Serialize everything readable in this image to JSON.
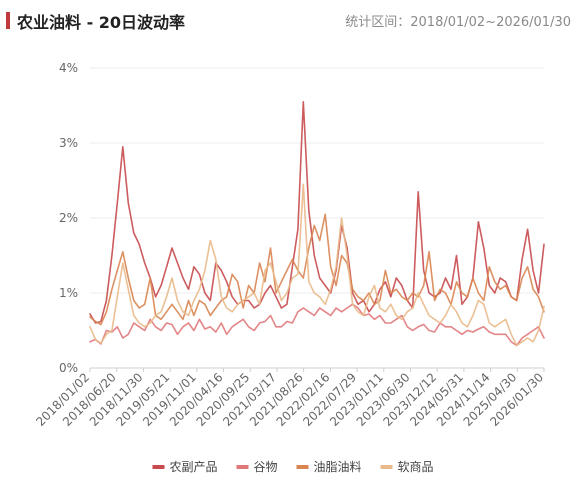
{
  "header": {
    "title": "农业油料 - 20日波动率",
    "range": "统计区间：2018/01/02~2026/01/30"
  },
  "chart_data": {
    "type": "line",
    "title": "农业油料 - 20日波动率",
    "xlabel": "",
    "ylabel": "",
    "ylim": [
      0,
      4
    ],
    "y_unit": "%",
    "y_ticks": [
      "0%",
      "1%",
      "2%",
      "3%",
      "4%"
    ],
    "x_ticks": [
      "2018/01/02",
      "2018/06/20",
      "2018/11/30",
      "2019/05/21",
      "2019/11/01",
      "2020/04/16",
      "2020/09/25",
      "2021/03/17",
      "2021/08/26",
      "2022/02/16",
      "2022/07/29",
      "2023/01/11",
      "2023/06/30",
      "2023/12/12",
      "2024/05/31",
      "2024/11/14",
      "2025/04/30",
      "2026/01/30"
    ],
    "legend_position": "bottom",
    "grid": "horizontal",
    "series": [
      {
        "name": "农副产品",
        "color": "#c84a4c",
        "values": [
          0.72,
          0.6,
          0.62,
          0.9,
          1.5,
          2.2,
          2.95,
          2.2,
          1.8,
          1.65,
          1.4,
          1.2,
          0.95,
          1.1,
          1.35,
          1.6,
          1.4,
          1.2,
          1.05,
          1.35,
          1.25,
          1.0,
          0.9,
          1.4,
          1.3,
          1.15,
          0.95,
          0.85,
          0.9,
          0.9,
          0.8,
          0.85,
          1.0,
          1.1,
          0.95,
          0.8,
          0.85,
          1.35,
          1.85,
          3.55,
          2.1,
          1.5,
          1.2,
          1.1,
          1.0,
          1.3,
          1.9,
          1.6,
          1.0,
          0.85,
          0.9,
          0.75,
          0.85,
          1.05,
          1.15,
          0.95,
          1.2,
          1.1,
          0.9,
          0.8,
          2.35,
          1.3,
          1.0,
          0.95,
          1.0,
          1.2,
          1.05,
          1.5,
          0.85,
          0.95,
          1.2,
          1.95,
          1.6,
          1.1,
          1.0,
          1.2,
          1.15,
          0.95,
          0.9,
          1.45,
          1.85,
          1.3,
          1.0,
          1.65
        ]
      },
      {
        "name": "谷物",
        "color": "#e0787a",
        "values": [
          0.35,
          0.38,
          0.32,
          0.5,
          0.48,
          0.55,
          0.4,
          0.45,
          0.6,
          0.55,
          0.5,
          0.65,
          0.55,
          0.5,
          0.6,
          0.58,
          0.45,
          0.55,
          0.6,
          0.5,
          0.65,
          0.52,
          0.55,
          0.48,
          0.6,
          0.45,
          0.55,
          0.6,
          0.65,
          0.55,
          0.5,
          0.6,
          0.62,
          0.7,
          0.55,
          0.55,
          0.62,
          0.6,
          0.75,
          0.8,
          0.75,
          0.7,
          0.8,
          0.75,
          0.7,
          0.8,
          0.75,
          0.8,
          0.85,
          0.8,
          0.7,
          0.72,
          0.65,
          0.7,
          0.6,
          0.6,
          0.65,
          0.7,
          0.55,
          0.5,
          0.55,
          0.58,
          0.5,
          0.48,
          0.6,
          0.55,
          0.55,
          0.5,
          0.45,
          0.5,
          0.48,
          0.52,
          0.55,
          0.48,
          0.45,
          0.45,
          0.45,
          0.35,
          0.3,
          0.4,
          0.45,
          0.5,
          0.55,
          0.4
        ]
      },
      {
        "name": "油脂油料",
        "color": "#d98552",
        "values": [
          0.68,
          0.62,
          0.58,
          0.75,
          1.05,
          1.3,
          1.55,
          1.2,
          0.9,
          0.8,
          0.85,
          1.2,
          0.7,
          0.65,
          0.75,
          0.85,
          0.75,
          0.65,
          0.9,
          0.7,
          0.9,
          0.85,
          0.7,
          0.8,
          0.9,
          0.95,
          1.25,
          1.15,
          0.8,
          1.1,
          1.0,
          1.4,
          1.15,
          1.6,
          1.0,
          1.15,
          1.3,
          1.45,
          1.3,
          1.2,
          1.6,
          1.9,
          1.7,
          2.05,
          1.35,
          1.1,
          1.5,
          1.4,
          1.05,
          0.95,
          0.9,
          1.0,
          0.85,
          0.9,
          1.3,
          1.0,
          1.05,
          0.95,
          0.9,
          1.0,
          0.95,
          1.1,
          1.55,
          0.9,
          1.05,
          1.0,
          0.85,
          1.15,
          1.0,
          0.95,
          1.2,
          1.0,
          0.9,
          1.35,
          1.15,
          1.05,
          1.1,
          0.95,
          0.9,
          1.2,
          1.35,
          1.05,
          0.95,
          0.75
        ]
      },
      {
        "name": "软商品",
        "color": "#e9b98a",
        "values": [
          0.55,
          0.38,
          0.33,
          0.45,
          0.5,
          0.95,
          1.4,
          1.05,
          0.7,
          0.6,
          0.55,
          0.6,
          0.7,
          0.75,
          0.95,
          1.2,
          0.9,
          0.75,
          0.7,
          0.9,
          1.05,
          1.3,
          1.7,
          1.45,
          0.95,
          0.8,
          0.75,
          0.85,
          0.9,
          0.95,
          1.0,
          0.85,
          1.3,
          1.4,
          1.15,
          0.9,
          1.0,
          1.2,
          1.25,
          2.45,
          1.15,
          1.0,
          0.95,
          0.85,
          1.05,
          1.35,
          2.0,
          1.5,
          0.85,
          0.75,
          0.7,
          0.95,
          1.1,
          0.8,
          0.75,
          0.85,
          0.7,
          0.65,
          0.75,
          0.8,
          1.0,
          0.85,
          0.7,
          0.65,
          0.6,
          0.7,
          0.85,
          0.75,
          0.6,
          0.55,
          0.7,
          0.9,
          0.85,
          0.6,
          0.55,
          0.6,
          0.65,
          0.45,
          0.3,
          0.35,
          0.4,
          0.35,
          0.5,
          0.82
        ]
      }
    ]
  }
}
